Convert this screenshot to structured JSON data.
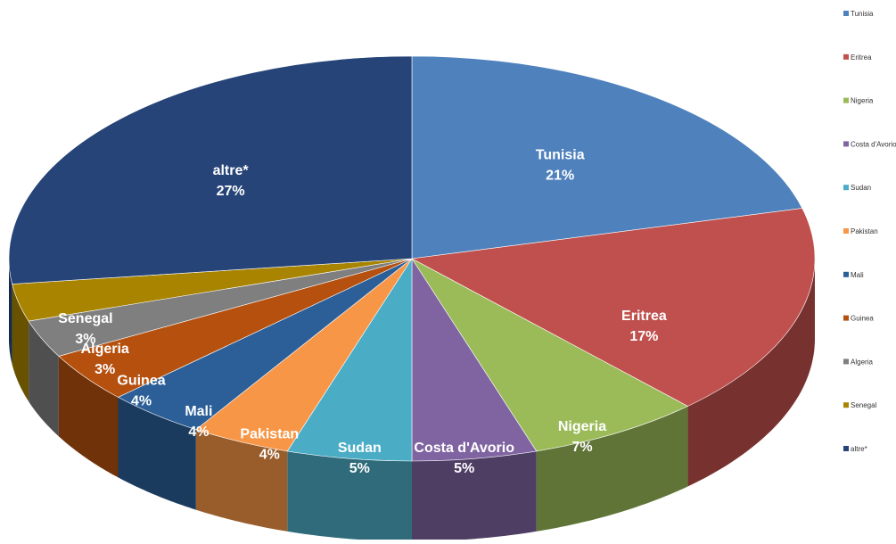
{
  "chart_data": {
    "type": "pie",
    "style": "3d",
    "title": "",
    "slices": [
      {
        "label": "Tunisia",
        "value": 21,
        "pct_label": "21%",
        "color": "#4f81bd"
      },
      {
        "label": "Eritrea",
        "value": 17,
        "pct_label": "17%",
        "color": "#c0504d"
      },
      {
        "label": "Nigeria",
        "value": 7,
        "pct_label": "7%",
        "color": "#9bbb59"
      },
      {
        "label": "Costa d'Avorio",
        "value": 5,
        "pct_label": "5%",
        "color": "#8064a2"
      },
      {
        "label": "Sudan",
        "value": 5,
        "pct_label": "5%",
        "color": "#4bacc6"
      },
      {
        "label": "Pakistan",
        "value": 4,
        "pct_label": "4%",
        "color": "#f79646"
      },
      {
        "label": "Mali",
        "value": 4,
        "pct_label": "4%",
        "color": "#2c5f98"
      },
      {
        "label": "Guinea",
        "value": 4,
        "pct_label": "4%",
        "color": "#b5500f"
      },
      {
        "label": "Algeria",
        "value": 3,
        "pct_label": "3%",
        "color": "#7f7f7f"
      },
      {
        "label": "Senegal",
        "value": 3,
        "pct_label": "3%",
        "color": "#a88400"
      },
      {
        "label": "altre*",
        "value": 27,
        "pct_label": "27%",
        "color": "#264478"
      }
    ],
    "legend": {
      "placement": "right",
      "entries": [
        "Tunisia",
        "Eritrea",
        "Nigeria",
        "Costa d'Avorio",
        "Sudan",
        "Pakistan",
        "Mali",
        "Guinea",
        "Algeria",
        "Senegal",
        "altre*"
      ]
    }
  }
}
